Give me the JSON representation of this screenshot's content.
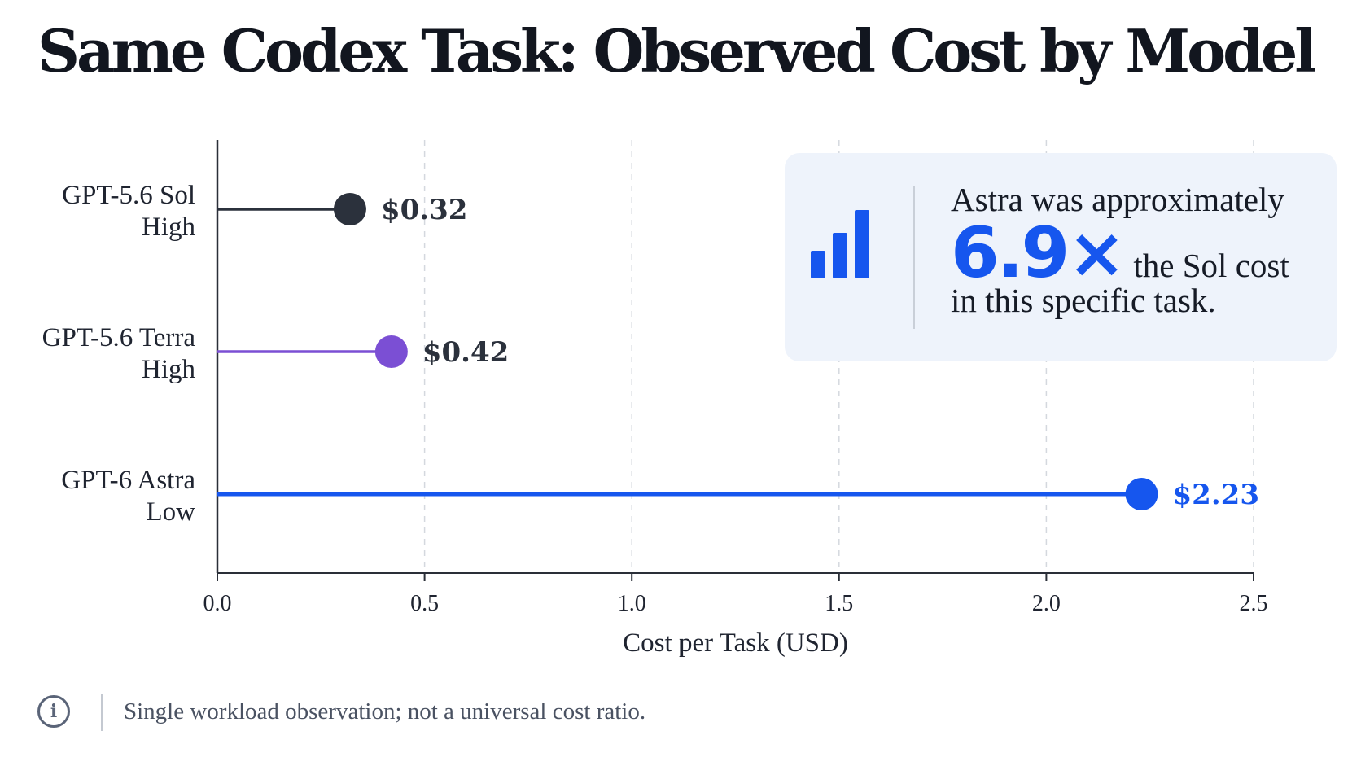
{
  "title": "Same Codex Task: Observed Cost by Model",
  "chart_data": {
    "type": "lollipop",
    "orientation": "horizontal",
    "categories": [
      [
        "GPT-5.6 Sol",
        "High"
      ],
      [
        "GPT-5.6 Terra",
        "High"
      ],
      [
        "GPT-6 Astra",
        "Low"
      ]
    ],
    "values": [
      0.32,
      0.42,
      2.23
    ],
    "value_labels": [
      "$0.32",
      "$0.42",
      "$2.23"
    ],
    "colors": [
      "#2b313c",
      "#7b4fd4",
      "#1656ee"
    ],
    "xlabel": "Cost per Task (USD)",
    "xlim": [
      0,
      2.5
    ],
    "xticks": [
      "0.0",
      "0.5",
      "1.0",
      "1.5",
      "2.0",
      "2.5"
    ],
    "grid": "vertical dashed"
  },
  "callout": {
    "line1": "Astra was approximately",
    "multiplier": "6.9×",
    "line2_rest": "the Sol cost",
    "line3": "in this specific task.",
    "icon": "bar-chart-icon",
    "accent": "#1656ee"
  },
  "footer": {
    "icon": "info-icon",
    "note": "Single workload observation; not a universal cost ratio."
  }
}
